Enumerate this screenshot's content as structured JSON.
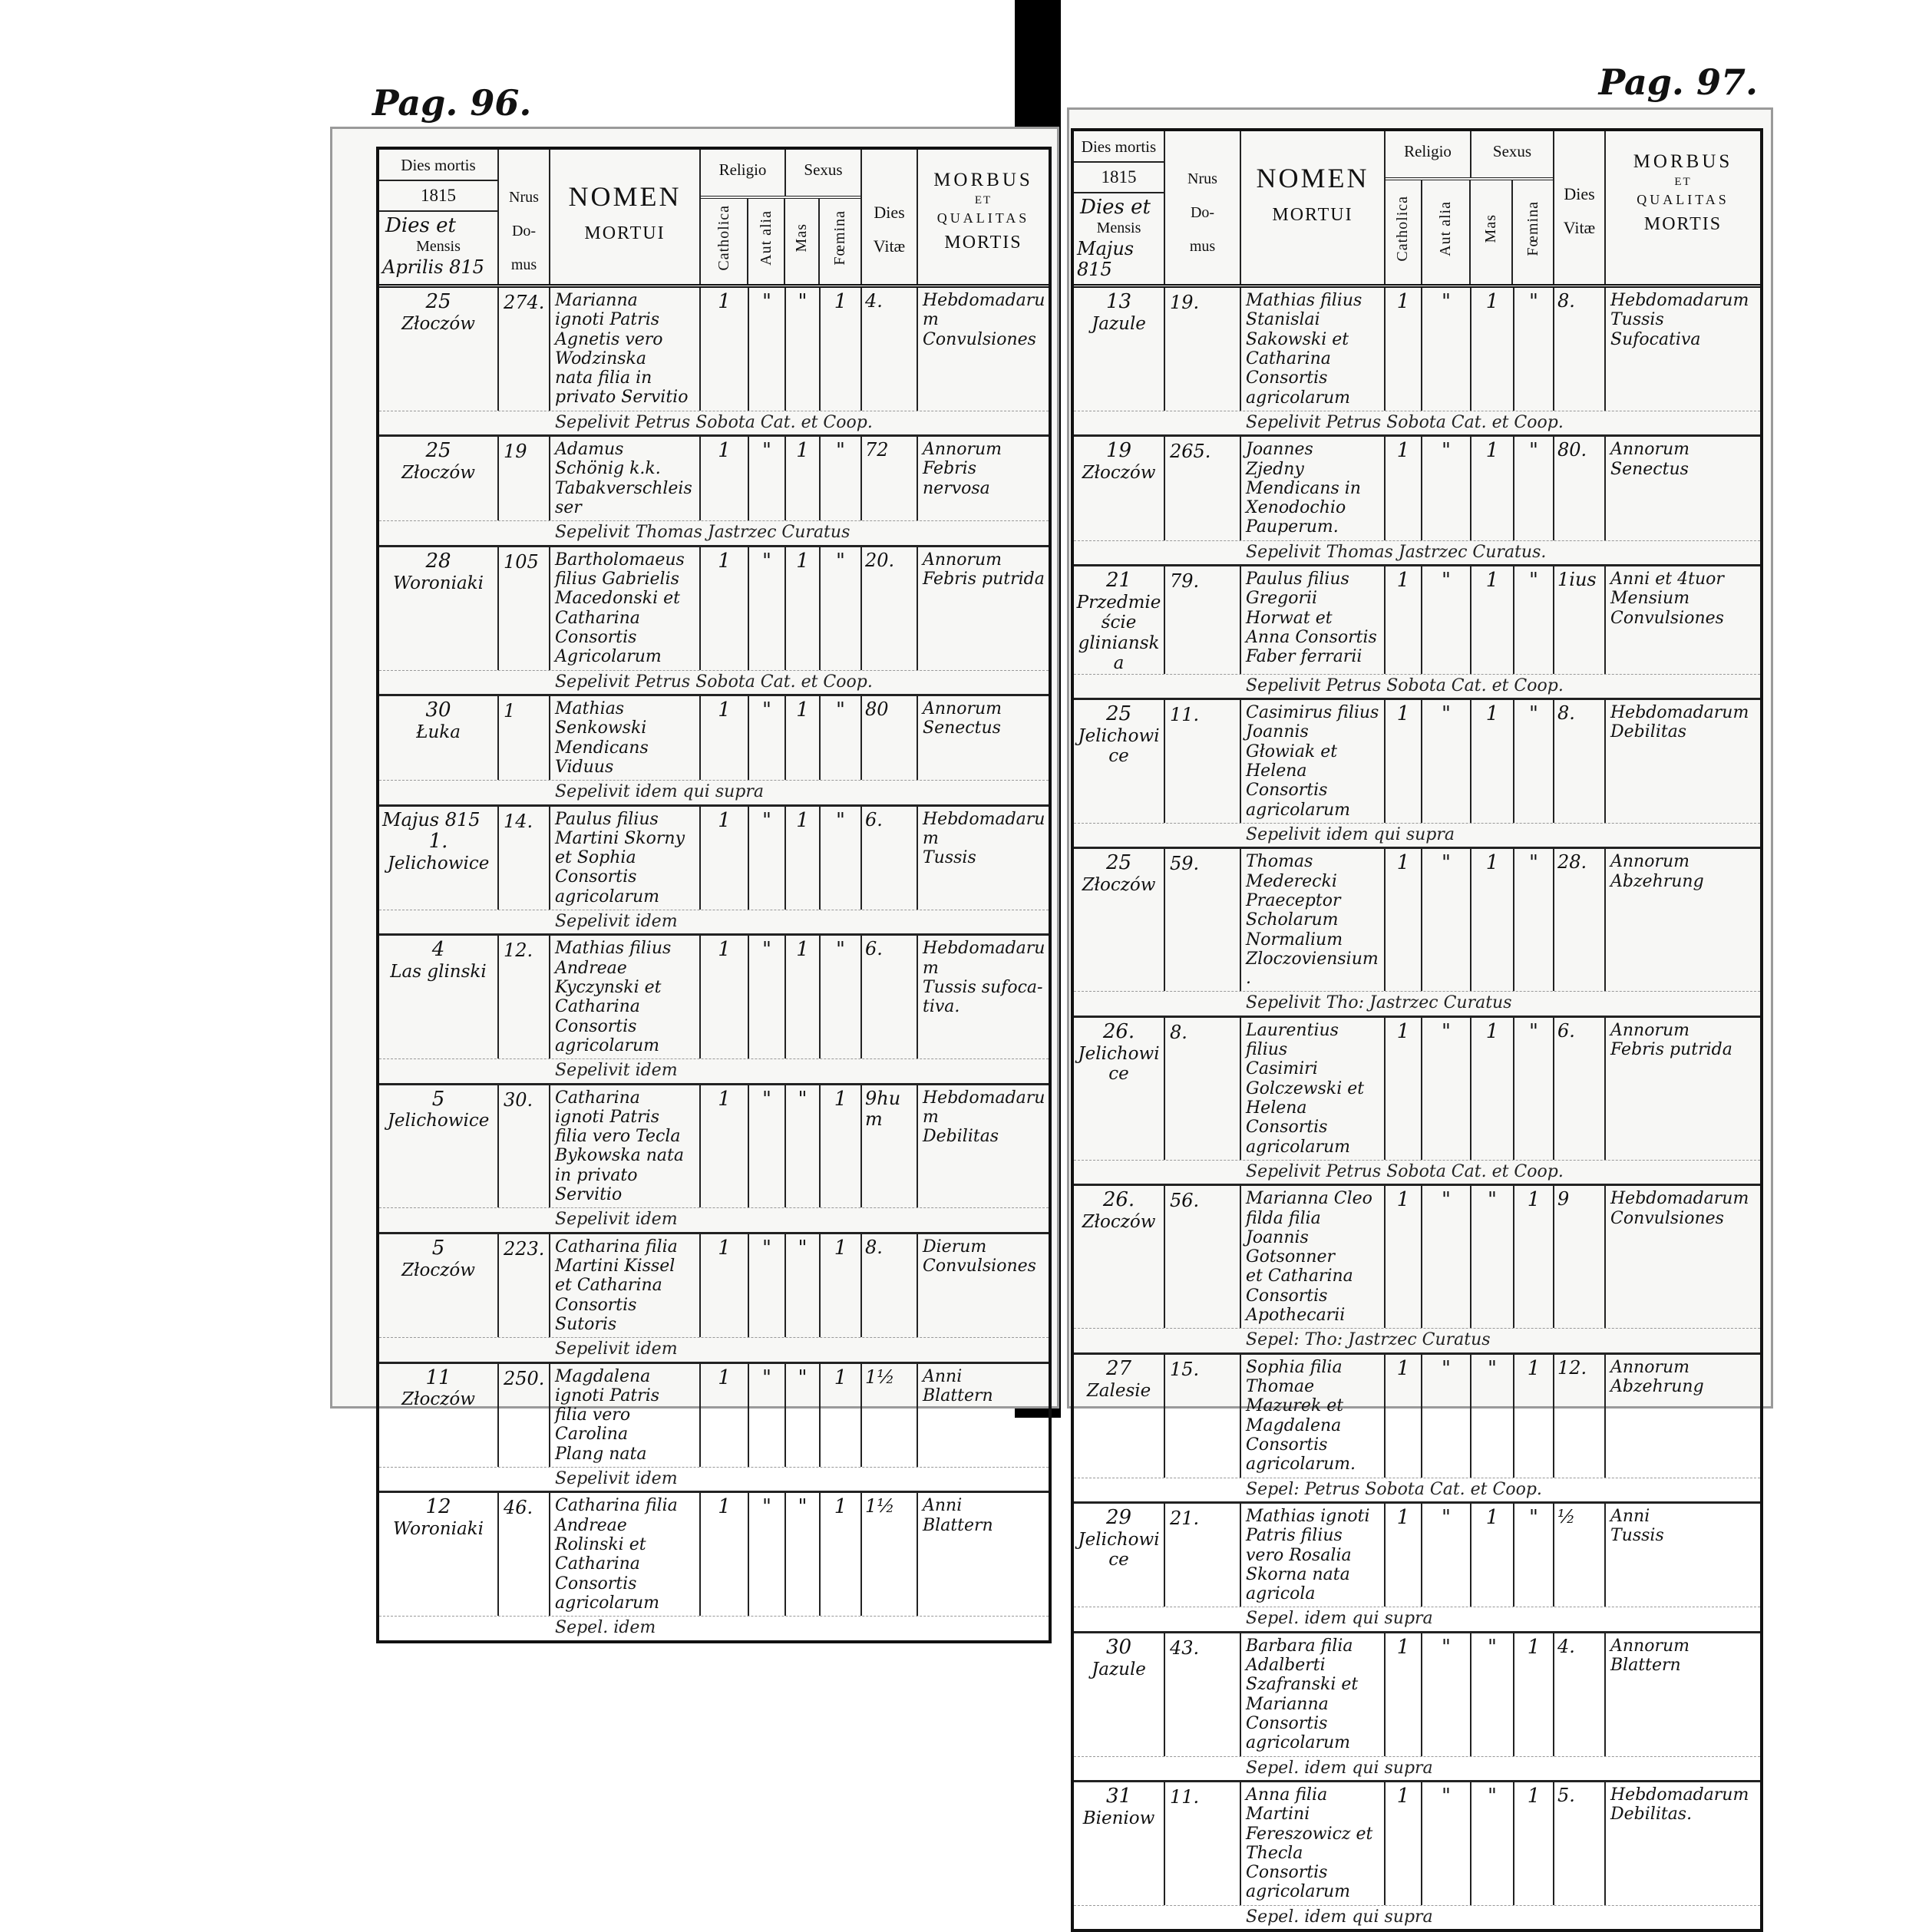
{
  "header": {
    "dies_mortis": "Dies mortis",
    "year": "1815",
    "dies_et_mensis": "Dies et",
    "mensis": "Mensis",
    "nrus": "Nrus",
    "domus_1": "Do-",
    "domus_2": "mus",
    "nomen": "NOMEN",
    "mortui": "MORTUI",
    "religio": "Religio",
    "sexus": "Sexus",
    "catholica": "Catholica",
    "aut_alia": "Aut alia",
    "mas": "Mas",
    "foemina": "Fœmina",
    "dies": "Dies",
    "vitae": "Vitæ",
    "morbus": "MORBUS",
    "et": "ET",
    "qualitas": "QUALITAS",
    "mortis": "MORTIS"
  },
  "left_page": {
    "page_number": "Pag. 96.",
    "month": "Aprilis 815",
    "rows": [
      {
        "month_label": "",
        "date": "25",
        "place": "Złoczów",
        "domus": "274.",
        "nomen": [
          "Marianna",
          "ignoti Patris",
          "Agnetis vero Wodzinska",
          "nata filia in privato Servitio"
        ],
        "cath": "1",
        "alia": "\"",
        "mas": "\"",
        "foem": "1",
        "vitae": "4.",
        "morbus": [
          "Hebdomadarum",
          "Convulsiones"
        ],
        "sepult": "Sepelivit Petrus Sobota Cat. et Coop."
      },
      {
        "month_label": "",
        "date": "25",
        "place": "Złoczów",
        "domus": "19",
        "nomen": [
          "Adamus",
          "Schönig k.k. Tabakverschleisser"
        ],
        "cath": "1",
        "alia": "\"",
        "mas": "1",
        "foem": "\"",
        "vitae": "72",
        "morbus": [
          "Annorum",
          "Febris nervosa"
        ],
        "sepult": "Sepelivit Thomas Jastrzec Curatus"
      },
      {
        "month_label": "",
        "date": "28",
        "place": "Woroniaki",
        "domus": "105",
        "nomen": [
          "Bartholomaeus",
          "filius Gabrielis Macedonski et",
          "Catharina Consortis Agricolarum"
        ],
        "cath": "1",
        "alia": "\"",
        "mas": "1",
        "foem": "\"",
        "vitae": "20.",
        "morbus": [
          "Annorum",
          "Febris putrida"
        ],
        "sepult": "Sepelivit Petrus Sobota Cat. et Coop."
      },
      {
        "month_label": "",
        "date": "30",
        "place": "Łuka",
        "domus": "1",
        "nomen": [
          "Mathias",
          "Senkowski Mendicans Viduus"
        ],
        "cath": "1",
        "alia": "\"",
        "mas": "1",
        "foem": "\"",
        "vitae": "80",
        "morbus": [
          "Annorum",
          "Senectus"
        ],
        "sepult": "Sepelivit idem qui supra"
      },
      {
        "month_label": "Majus 815",
        "date": "1.",
        "place": "Jelichowice",
        "domus": "14.",
        "nomen": [
          "Paulus filius",
          "Martini Skorny et Sophia Consortis",
          "agricolarum"
        ],
        "cath": "1",
        "alia": "\"",
        "mas": "1",
        "foem": "\"",
        "vitae": "6.",
        "morbus": [
          "Hebdomadarum",
          "Tussis"
        ],
        "sepult": "Sepelivit idem"
      },
      {
        "month_label": "",
        "date": "4",
        "place": "Las glinski",
        "domus": "12.",
        "nomen": [
          "Mathias filius",
          "Andreae Kyczynski et Catharina",
          "Consortis agricolarum"
        ],
        "cath": "1",
        "alia": "\"",
        "mas": "1",
        "foem": "\"",
        "vitae": "6.",
        "morbus": [
          "Hebdomadarum",
          "Tussis sufoca-",
          "tiva."
        ],
        "sepult": "Sepelivit idem"
      },
      {
        "month_label": "",
        "date": "5",
        "place": "Jelichowice",
        "domus": "30.",
        "nomen": [
          "Catharina",
          "ignoti Patris",
          "filia vero Tecla Bykowska nata",
          "in privato Servitio"
        ],
        "cath": "1",
        "alia": "\"",
        "mas": "\"",
        "foem": "1",
        "vitae": "9hum",
        "morbus": [
          "Hebdomadarum",
          "Debilitas"
        ],
        "sepult": "Sepelivit idem"
      },
      {
        "month_label": "",
        "date": "5",
        "place": "Złoczów",
        "domus": "223.",
        "nomen": [
          "Catharina filia",
          "Martini Kissel et Catharina",
          "Consortis Sutoris"
        ],
        "cath": "1",
        "alia": "\"",
        "mas": "\"",
        "foem": "1",
        "vitae": "8.",
        "morbus": [
          "Dierum",
          "Convulsiones"
        ],
        "sepult": "Sepelivit idem"
      },
      {
        "month_label": "",
        "date": "11",
        "place": "Złoczów",
        "domus": "250.",
        "nomen": [
          "Magdalena",
          "ignoti Patris filia vero Carolina",
          "Plang nata"
        ],
        "cath": "1",
        "alia": "\"",
        "mas": "\"",
        "foem": "1",
        "vitae": "1½",
        "morbus": [
          "Anni",
          "Blattern"
        ],
        "sepult": "Sepelivit idem"
      },
      {
        "month_label": "",
        "date": "12",
        "place": "Woroniaki",
        "domus": "46.",
        "nomen": [
          "Catharina filia",
          "Andreae Rolinski et Catharina",
          "Consortis agricolarum"
        ],
        "cath": "1",
        "alia": "\"",
        "mas": "\"",
        "foem": "1",
        "vitae": "1½",
        "morbus": [
          "Anni",
          "Blattern"
        ],
        "sepult": "Sepel. idem"
      }
    ]
  },
  "right_page": {
    "page_number": "Pag. 97.",
    "month": "Majus 815",
    "rows": [
      {
        "date": "13",
        "place": "Jazule",
        "domus": "19.",
        "nomen": [
          "Mathias filius",
          "Stanislai Sakowski et Catharina",
          "Consortis agricolarum"
        ],
        "cath": "1",
        "alia": "\"",
        "mas": "1",
        "foem": "\"",
        "vitae": "8.",
        "morbus": [
          "Hebdomadarum",
          "Tussis Sufocativa"
        ],
        "sepult": "Sepelivit Petrus Sobota Cat. et Coop."
      },
      {
        "date": "19",
        "place": "Złoczów",
        "domus": "265.",
        "nomen": [
          "Joannes",
          "Zjedny Mendicans in Xenodochio",
          "Pauperum."
        ],
        "cath": "1",
        "alia": "\"",
        "mas": "1",
        "foem": "\"",
        "vitae": "80.",
        "morbus": [
          "Annorum",
          "Senectus"
        ],
        "sepult": "Sepelivit Thomas Jastrzec Curatus."
      },
      {
        "date": "21",
        "place": "Przedmieście glinianska",
        "domus": "79.",
        "nomen": [
          "Paulus filius",
          "Gregorii Horwat et Anna Consortis",
          "Faber ferrarii"
        ],
        "cath": "1",
        "alia": "\"",
        "mas": "1",
        "foem": "\"",
        "vitae": "1ius",
        "morbus": [
          "Anni et 4tuor",
          "Mensium",
          "Convulsiones"
        ],
        "sepult": "Sepelivit Petrus Sobota Cat. et Coop."
      },
      {
        "date": "25",
        "place": "Jelichowice",
        "domus": "11.",
        "nomen": [
          "Casimirus filius",
          "Joannis Głowiak et Helena Consortis",
          "agricolarum"
        ],
        "cath": "1",
        "alia": "\"",
        "mas": "1",
        "foem": "\"",
        "vitae": "8.",
        "morbus": [
          "Hebdomadarum",
          "Debilitas"
        ],
        "sepult": "Sepelivit idem qui supra"
      },
      {
        "date": "25",
        "place": "Złoczów",
        "domus": "59.",
        "nomen": [
          "Thomas",
          "Mederecki Praeceptor Scholarum",
          "Normalium Zloczoviensium."
        ],
        "cath": "1",
        "alia": "\"",
        "mas": "1",
        "foem": "\"",
        "vitae": "28.",
        "morbus": [
          "Annorum",
          "Abzehrung"
        ],
        "sepult": "Sepelivit Tho: Jastrzec Curatus"
      },
      {
        "date": "26.",
        "place": "Jelichowice",
        "domus": "8.",
        "nomen": [
          "Laurentius filius",
          "Casimiri Golczewski et Helena",
          "Consortis agricolarum"
        ],
        "cath": "1",
        "alia": "\"",
        "mas": "1",
        "foem": "\"",
        "vitae": "6.",
        "morbus": [
          "Annorum",
          "Febris putrida"
        ],
        "sepult": "Sepelivit Petrus Sobota Cat. et Coop."
      },
      {
        "date": "26.",
        "place": "Złoczów",
        "domus": "56.",
        "nomen": [
          "Marianna Cleo",
          "filda filia Joannis Gotsonner",
          "et Catharina Consortis Apothecarii"
        ],
        "cath": "1",
        "alia": "\"",
        "mas": "\"",
        "foem": "1",
        "vitae": "9",
        "morbus": [
          "Hebdomadarum",
          "Convulsiones"
        ],
        "sepult": "Sepel: Tho: Jastrzec Curatus"
      },
      {
        "date": "27",
        "place": "Zalesie",
        "domus": "15.",
        "nomen": [
          "Sophia filia",
          "Thomae Mazurek et Magdalena",
          "Consortis agricolarum."
        ],
        "cath": "1",
        "alia": "\"",
        "mas": "\"",
        "foem": "1",
        "vitae": "12.",
        "morbus": [
          "Annorum",
          "Abzehrung"
        ],
        "sepult": "Sepel: Petrus Sobota Cat. et Coop."
      },
      {
        "date": "29",
        "place": "Jelichowice",
        "domus": "21.",
        "nomen": [
          "Mathias ignoti",
          "Patris filius",
          "vero Rosalia Skorna nata agricola"
        ],
        "cath": "1",
        "alia": "\"",
        "mas": "1",
        "foem": "\"",
        "vitae": "½",
        "morbus": [
          "Anni",
          "Tussis"
        ],
        "sepult": "Sepel. idem qui supra"
      },
      {
        "date": "30",
        "place": "Jazule",
        "domus": "43.",
        "nomen": [
          "Barbara filia",
          "Adalberti Szafranski et Marianna",
          "Consortis agricolarum"
        ],
        "cath": "1",
        "alia": "\"",
        "mas": "\"",
        "foem": "1",
        "vitae": "4.",
        "morbus": [
          "Annorum",
          "Blattern"
        ],
        "sepult": "Sepel. idem qui supra"
      },
      {
        "date": "31",
        "place": "Bieniow",
        "domus": "11.",
        "nomen": [
          "Anna filia",
          "Martini Fereszowicz et Thecla",
          "Consortis agricolarum"
        ],
        "cath": "1",
        "alia": "\"",
        "mas": "\"",
        "foem": "1",
        "vitae": "5.",
        "morbus": [
          "Hebdomadarum",
          "Debilitas."
        ],
        "sepult": "Sepel. idem qui supra"
      }
    ]
  }
}
